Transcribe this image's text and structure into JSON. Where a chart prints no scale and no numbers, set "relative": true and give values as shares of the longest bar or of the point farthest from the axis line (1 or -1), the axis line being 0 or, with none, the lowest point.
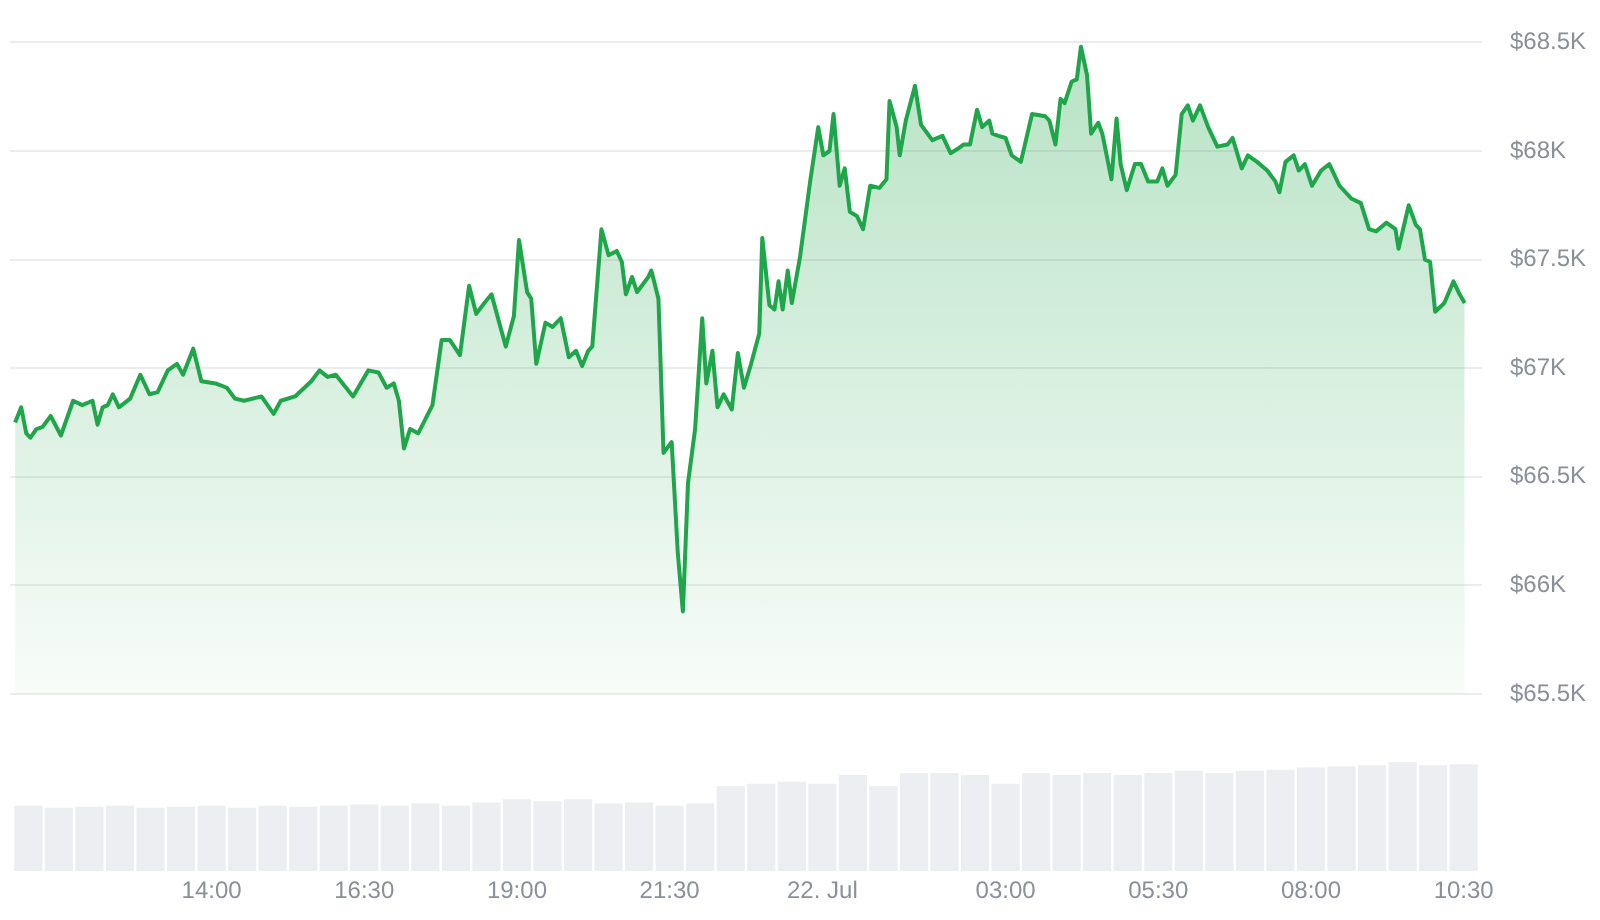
{
  "chart_data": [
    {
      "type": "area",
      "color": "#1fa64a",
      "grid": "y",
      "tick_labels": "y",
      "xlim": [
        "--07-21T10:42",
        "--07-22T10:48"
      ],
      "ylim": [
        65500,
        68500
      ],
      "yticks": [
        {
          "value": 65500,
          "label": "$65.5K"
        },
        {
          "value": 66000,
          "label": "$66K"
        },
        {
          "value": 66500,
          "label": "$66.5K"
        },
        {
          "value": 67000,
          "label": "$67K"
        },
        {
          "value": 67500,
          "label": "$67.5K"
        },
        {
          "value": 68000,
          "label": "$68K"
        },
        {
          "value": 68500,
          "label": "$68.5K"
        }
      ],
      "x": [
        "--07-21T10:47",
        "--07-21T10:53",
        "--07-21T10:58",
        "--07-21T11:02",
        "--07-21T11:08",
        "--07-21T11:14",
        "--07-21T11:22",
        "--07-21T11:32",
        "--07-21T11:44",
        "--07-21T11:53",
        "--07-21T12:03",
        "--07-21T12:08",
        "--07-21T12:13",
        "--07-21T12:18",
        "--07-21T12:23",
        "--07-21T12:29",
        "--07-21T12:40",
        "--07-21T12:50",
        "--07-21T12:59",
        "--07-21T13:07",
        "--07-21T13:17",
        "--07-21T13:26",
        "--07-21T13:32",
        "--07-21T13:42",
        "--07-21T13:50",
        "--07-21T14:04",
        "--07-21T14:15",
        "--07-21T14:23",
        "--07-21T14:32",
        "--07-21T14:49",
        "--07-21T15:01",
        "--07-21T15:08",
        "--07-21T15:22",
        "--07-21T15:38",
        "--07-21T15:46",
        "--07-21T15:54",
        "--07-21T16:02",
        "--07-21T16:19",
        "--07-21T16:34",
        "--07-21T16:44",
        "--07-21T16:52",
        "--07-21T16:59",
        "--07-21T17:04",
        "--07-21T17:09",
        "--07-21T17:15",
        "--07-21T17:23",
        "--07-21T17:37",
        "--07-21T17:46",
        "--07-21T17:54",
        "--07-21T18:04",
        "--07-21T18:13",
        "--07-21T18:20",
        "--07-21T18:28",
        "--07-21T18:35",
        "--07-21T18:49",
        "--07-21T18:57",
        "--07-21T19:02",
        "--07-21T19:10",
        "--07-21T19:14",
        "--07-21T19:19",
        "--07-21T19:28",
        "--07-21T19:35",
        "--07-21T19:43",
        "--07-21T19:51",
        "--07-21T19:58",
        "--07-21T20:04",
        "--07-21T20:10",
        "--07-21T20:14",
        "--07-21T20:23",
        "--07-21T20:30",
        "--07-21T20:38",
        "--07-21T20:43",
        "--07-21T20:47",
        "--07-21T20:53",
        "--07-21T20:58",
        "--07-21T21:09",
        "--07-21T21:12",
        "--07-21T21:19",
        "--07-21T21:24",
        "--07-21T21:32",
        "--07-21T21:38",
        "--07-21T21:43",
        "--07-21T21:48",
        "--07-21T21:55",
        "--07-21T22:02",
        "--07-21T22:06",
        "--07-21T22:12",
        "--07-21T22:17",
        "--07-21T22:23",
        "--07-21T22:31",
        "--07-21T22:37",
        "--07-21T22:43",
        "--07-21T22:50",
        "--07-21T22:58",
        "--07-21T23:01",
        "--07-21T23:08",
        "--07-21T23:13",
        "--07-21T23:17",
        "--07-21T23:21",
        "--07-21T23:26",
        "--07-21T23:30",
        "--07-21T23:38",
        "--07-21T23:48",
        "--07-21T23:56",
        "--07-22T00:01",
        "--07-22T00:07",
        "--07-22T00:11",
        "--07-22T00:17",
        "--07-22T00:22",
        "--07-22T00:27",
        "--07-22T00:34",
        "--07-22T00:40",
        "--07-22T00:47",
        "--07-22T00:56",
        "--07-22T01:03",
        "--07-22T01:06",
        "--07-22T01:13",
        "--07-22T01:16",
        "--07-22T01:22",
        "--07-22T01:31",
        "--07-22T01:37",
        "--07-22T01:48",
        "--07-22T01:58",
        "--07-22T02:06",
        "--07-22T02:13",
        "--07-22T02:19",
        "--07-22T02:25",
        "--07-22T02:32",
        "--07-22T02:37",
        "--07-22T02:44",
        "--07-22T02:47",
        "--07-22T02:53",
        "--07-22T03:00",
        "--07-22T03:06",
        "--07-22T03:15",
        "--07-22T03:26",
        "--07-22T03:39",
        "--07-22T03:43",
        "--07-22T03:49",
        "--07-22T03:54",
        "--07-22T03:58",
        "--07-22T04:05",
        "--07-22T04:10",
        "--07-22T04:14",
        "--07-22T04:20",
        "--07-22T04:24",
        "--07-22T04:31",
        "--07-22T04:35",
        "--07-22T04:44",
        "--07-22T04:49",
        "--07-22T04:53",
        "--07-22T04:59",
        "--07-22T05:07",
        "--07-22T05:13",
        "--07-22T05:20",
        "--07-22T05:29",
        "--07-22T05:34",
        "--07-22T05:39",
        "--07-22T05:47",
        "--07-22T05:53",
        "--07-22T05:59",
        "--07-22T06:04",
        "--07-22T06:11",
        "--07-22T06:19",
        "--07-22T06:28",
        "--07-22T06:38",
        "--07-22T06:43",
        "--07-22T06:52",
        "--07-22T06:58",
        "--07-22T07:07",
        "--07-22T07:17",
        "--07-22T07:25",
        "--07-22T07:29",
        "--07-22T07:35",
        "--07-22T07:43",
        "--07-22T07:48",
        "--07-22T07:54",
        "--07-22T08:01",
        "--07-22T08:10",
        "--07-22T08:18",
        "--07-22T08:28",
        "--07-22T08:40",
        "--07-22T08:49",
        "--07-22T08:57",
        "--07-22T09:04",
        "--07-22T09:14",
        "--07-22T09:23",
        "--07-22T09:26",
        "--07-22T09:36",
        "--07-22T09:43",
        "--07-22T09:47",
        "--07-22T09:52",
        "--07-22T09:57",
        "--07-22T10:02",
        "--07-22T10:11",
        "--07-22T10:20",
        "--07-22T10:26",
        "--07-22T10:31"
      ],
      "values": [
        66750,
        66820,
        66700,
        66680,
        66720,
        66730,
        66780,
        66690,
        66850,
        66830,
        66850,
        66740,
        66820,
        66830,
        66880,
        66820,
        66860,
        66970,
        66880,
        66890,
        66990,
        67020,
        66970,
        67090,
        66940,
        66930,
        66910,
        66860,
        66850,
        66870,
        66790,
        66850,
        66870,
        66940,
        66990,
        66960,
        66970,
        66870,
        66990,
        66980,
        66910,
        66930,
        66850,
        66630,
        66720,
        66700,
        66830,
        67130,
        67130,
        67060,
        67380,
        67250,
        67300,
        67340,
        67100,
        67240,
        67590,
        67350,
        67320,
        67020,
        67210,
        67190,
        67230,
        67050,
        67080,
        67010,
        67080,
        67100,
        67640,
        67520,
        67540,
        67490,
        67340,
        67420,
        67350,
        67420,
        67450,
        67320,
        66610,
        66660,
        66150,
        65880,
        66470,
        66720,
        67230,
        66930,
        67080,
        66820,
        66880,
        66810,
        67070,
        66910,
        67020,
        67160,
        67600,
        67290,
        67270,
        67400,
        67270,
        67450,
        67300,
        67510,
        67860,
        68110,
        67980,
        68000,
        68170,
        67840,
        67920,
        67720,
        67700,
        67640,
        67840,
        67830,
        67870,
        68230,
        68110,
        67980,
        68140,
        68300,
        68120,
        68050,
        68070,
        67990,
        68010,
        68030,
        68030,
        68190,
        68110,
        68140,
        68080,
        68070,
        68060,
        67980,
        67950,
        68170,
        68160,
        68140,
        68030,
        68240,
        68220,
        68320,
        68330,
        68480,
        68350,
        68080,
        68130,
        68080,
        67870,
        68150,
        67940,
        67820,
        67940,
        67940,
        67860,
        67860,
        67920,
        67840,
        67890,
        68170,
        68210,
        68140,
        68210,
        68110,
        68020,
        68030,
        68060,
        67920,
        67980,
        67950,
        67910,
        67860,
        67810,
        67950,
        67980,
        67910,
        67940,
        67840,
        67910,
        67940,
        67840,
        67780,
        67760,
        67640,
        67630,
        67670,
        67640,
        67550,
        67750,
        67660,
        67640,
        67500,
        67490,
        67260,
        67300,
        67400,
        67340,
        67300
      ]
    },
    {
      "type": "bar",
      "relative": true,
      "color": "#eceef2",
      "tick_labels": "x",
      "xlim": [
        "--07-21T10:42",
        "--07-22T10:48"
      ],
      "xticks": [
        {
          "value": "--07-21T14:00",
          "label": "14:00"
        },
        {
          "value": "--07-21T16:30",
          "label": "16:30"
        },
        {
          "value": "--07-21T19:00",
          "label": "19:00"
        },
        {
          "value": "--07-21T21:30",
          "label": "21:30"
        },
        {
          "value": "--07-22T00:00",
          "label": "22. Jul"
        },
        {
          "value": "--07-22T03:00",
          "label": "03:00"
        },
        {
          "value": "--07-22T05:30",
          "label": "05:30"
        },
        {
          "value": "--07-22T08:00",
          "label": "08:00"
        },
        {
          "value": "--07-22T10:30",
          "label": "10:30"
        }
      ],
      "x": [
        "--07-21T11:00",
        "--07-21T11:30",
        "--07-21T12:00",
        "--07-21T12:30",
        "--07-21T13:00",
        "--07-21T13:30",
        "--07-21T14:00",
        "--07-21T14:30",
        "--07-21T15:00",
        "--07-21T15:30",
        "--07-21T16:00",
        "--07-21T16:30",
        "--07-21T17:00",
        "--07-21T17:30",
        "--07-21T18:00",
        "--07-21T18:30",
        "--07-21T19:00",
        "--07-21T19:30",
        "--07-21T20:00",
        "--07-21T20:30",
        "--07-21T21:00",
        "--07-21T21:30",
        "--07-21T22:00",
        "--07-21T22:30",
        "--07-21T23:00",
        "--07-21T23:30",
        "--07-22T00:00",
        "--07-22T00:30",
        "--07-22T01:00",
        "--07-22T01:30",
        "--07-22T02:00",
        "--07-22T02:30",
        "--07-22T03:00",
        "--07-22T03:30",
        "--07-22T04:00",
        "--07-22T04:30",
        "--07-22T05:00",
        "--07-22T05:30",
        "--07-22T06:00",
        "--07-22T06:30",
        "--07-22T07:00",
        "--07-22T07:30",
        "--07-22T08:00",
        "--07-22T08:30",
        "--07-22T09:00",
        "--07-22T09:30",
        "--07-22T10:00",
        "--07-22T10:30"
      ],
      "values": [
        0.6,
        0.58,
        0.59,
        0.6,
        0.58,
        0.59,
        0.6,
        0.58,
        0.6,
        0.59,
        0.6,
        0.61,
        0.6,
        0.62,
        0.6,
        0.63,
        0.66,
        0.64,
        0.66,
        0.62,
        0.63,
        0.6,
        0.62,
        0.78,
        0.8,
        0.82,
        0.8,
        0.88,
        0.78,
        0.9,
        0.9,
        0.88,
        0.8,
        0.9,
        0.88,
        0.9,
        0.88,
        0.9,
        0.92,
        0.9,
        0.92,
        0.93,
        0.95,
        0.96,
        0.97,
        1,
        0.97,
        0.98
      ]
    }
  ]
}
